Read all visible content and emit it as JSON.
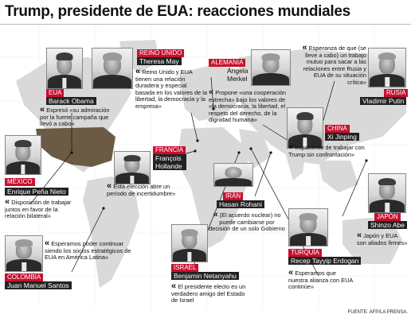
{
  "title": "Trump, presidente de EUA: reacciones mundiales",
  "source": "FUENTE: AFP/LA PRENSA.",
  "colors": {
    "accent": "#c8102e",
    "name_bar": "#222222",
    "map": "#d9d9d9",
    "usa": "#6b5b45"
  },
  "quote_mark": "«",
  "leaders": {
    "obama": {
      "country": "EUA",
      "name": "Barack Obama",
      "quote": "Expresó «su admiración por la fuerte campaña que llevó a cabo»"
    },
    "may": {
      "country": "REINO UNIDO",
      "name": "Theresa May",
      "quote": "Reino Unido y EUA tienen una relación duradera y especial basada en los valores de la libertad, la democracia y la empresa»"
    },
    "merkel": {
      "country": "ALEMANIA",
      "name": "Ángela Merkel",
      "quote": "Propone «una cooperación estrecha» bajo los valores de «la democracia, la libertad, el respeto del derecho, de la dignidad humana»"
    },
    "putin": {
      "country": "RUSIA",
      "name": "Vladimir Putin",
      "quote": "Esperanza de que (se lleve a cabo) un trabajo mutuo para sacar a las relaciones entre Rusia y EUA de su situación crítica»"
    },
    "xi": {
      "country": "CHINA",
      "name": "Xi Jinping",
      "quote": "Impaciente de trabajar con Trump sin confrontación»"
    },
    "hollande": {
      "country": "FRANCIA",
      "name": "François Hollande",
      "quote": "Esta elección abre un período de incertidumbre»"
    },
    "pena": {
      "country": "MÉXICO",
      "name": "Enrique Peña Nieto",
      "quote": "Disposición de trabajar juntos en favor de la relación bilateral»"
    },
    "rohani": {
      "country": "IRÁN",
      "name": "Hasan Rohani",
      "quote": "(El acuerdo nuclear) no puede cambiarse por decisión de un solo Gobierno"
    },
    "abe": {
      "country": "JAPÓN",
      "name": "Shinzo Abe",
      "quote": "Japón y EUA son aliados firmes»"
    },
    "santos": {
      "country": "COLOMBIA",
      "name": "Juan Manuel Santos",
      "quote": "Esperamos poder continuar siendo los socios estratégicos de EUA en América Latina»"
    },
    "netanyahu": {
      "country": "ISRAEL",
      "name": "Benjamin Netanyahu",
      "quote": "El presidente electo es un verdadero amigo del Estado de Israel"
    },
    "erdogan": {
      "country": "TURQUÍA",
      "name": "Recep Tayyip Erdogan",
      "quote": "Esperamos que nuestra alianza con EUA continúe»"
    }
  }
}
